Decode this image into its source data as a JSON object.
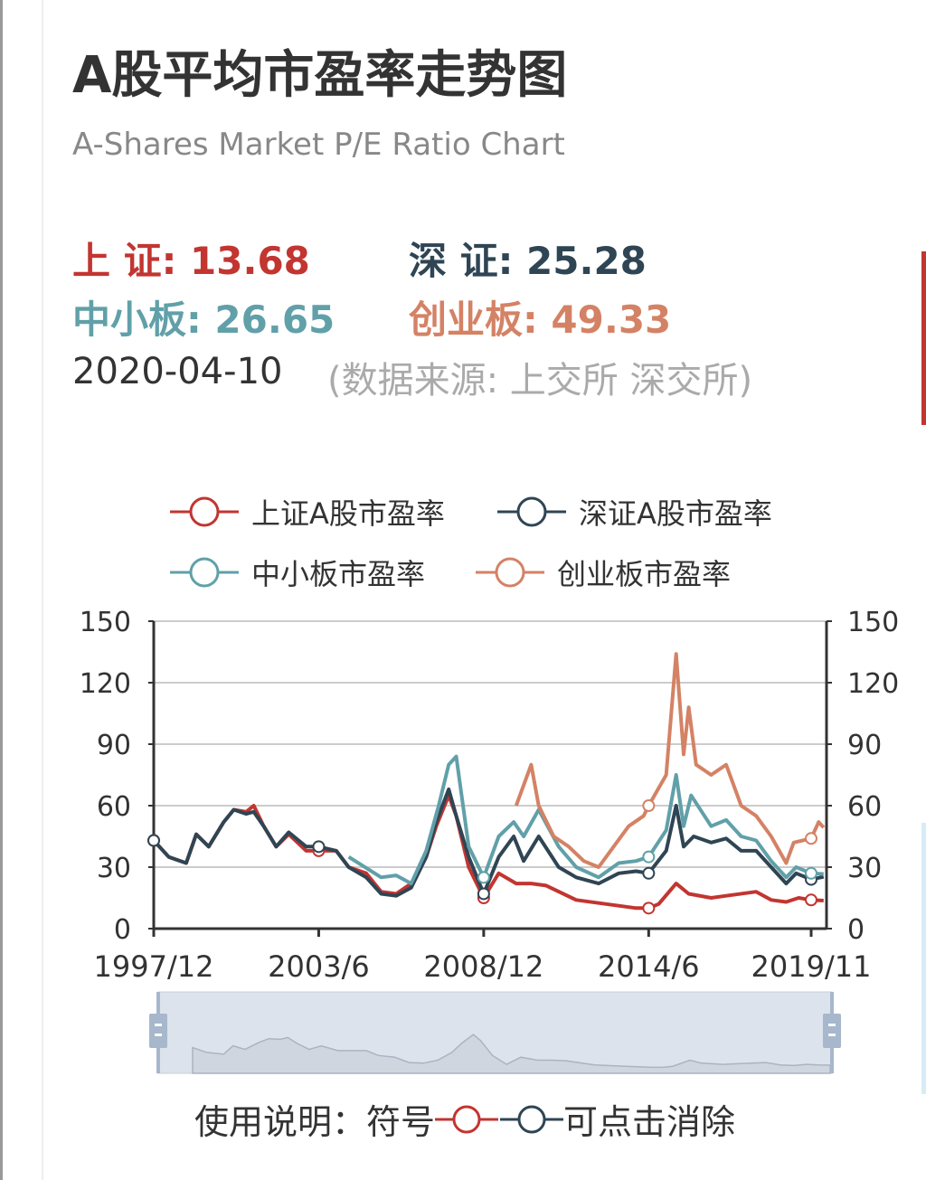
{
  "header": {
    "title": "A股平均市盈率走势图",
    "subtitle": "A-Shares Market P/E Ratio Chart"
  },
  "stats": [
    {
      "label": "上 证: ",
      "value": "13.68",
      "color": "#c23531"
    },
    {
      "label": "深 证: ",
      "value": "25.28",
      "color": "#2f4554"
    },
    {
      "label": "中小板: ",
      "value": "26.65",
      "color": "#61a0a8"
    },
    {
      "label": "创业板: ",
      "value": "49.33",
      "color": "#d48265"
    }
  ],
  "date": "2020-04-10",
  "source": "(数据来源: 上交所 深交所)",
  "note": {
    "prefix": "使用说明：符号",
    "suffix": "可点击消除"
  },
  "chart_data": {
    "type": "line",
    "xlabel": "",
    "ylabel": "",
    "ylim": [
      0,
      150
    ],
    "yticks": [
      0,
      30,
      60,
      90,
      120,
      150
    ],
    "xticks": [
      "1997/12",
      "2003/6",
      "2008/12",
      "2014/6",
      "2019/11"
    ],
    "grid": true,
    "legend_position": "top",
    "data_zoom": true,
    "series": [
      {
        "name": "上证A股市盈率",
        "color": "#c23531",
        "points": [
          [
            "1997/12",
            43
          ],
          [
            "1998/6",
            35
          ],
          [
            "1999/1",
            32
          ],
          [
            "1999/5",
            46
          ],
          [
            "1999/10",
            40
          ],
          [
            "2000/4",
            52
          ],
          [
            "2000/8",
            58
          ],
          [
            "2001/1",
            57
          ],
          [
            "2001/4",
            60
          ],
          [
            "2001/8",
            50
          ],
          [
            "2002/1",
            40
          ],
          [
            "2002/6",
            46
          ],
          [
            "2003/1",
            38
          ],
          [
            "2003/6",
            38
          ],
          [
            "2004/1",
            38
          ],
          [
            "2004/6",
            30
          ],
          [
            "2005/1",
            27
          ],
          [
            "2005/7",
            18
          ],
          [
            "2006/1",
            17
          ],
          [
            "2006/7",
            22
          ],
          [
            "2007/1",
            35
          ],
          [
            "2007/5",
            50
          ],
          [
            "2007/10",
            65
          ],
          [
            "2008/1",
            55
          ],
          [
            "2008/6",
            30
          ],
          [
            "2008/12",
            15
          ],
          [
            "2009/6",
            27
          ],
          [
            "2010/1",
            22
          ],
          [
            "2010/7",
            22
          ],
          [
            "2011/1",
            21
          ],
          [
            "2012/1",
            14
          ],
          [
            "2013/1",
            12
          ],
          [
            "2014/1",
            10
          ],
          [
            "2014/6",
            10
          ],
          [
            "2014/10",
            12
          ],
          [
            "2015/5",
            22
          ],
          [
            "2015/10",
            17
          ],
          [
            "2016/7",
            15
          ],
          [
            "2017/1",
            16
          ],
          [
            "2018/1",
            18
          ],
          [
            "2018/7",
            14
          ],
          [
            "2019/1",
            13
          ],
          [
            "2019/6",
            15
          ],
          [
            "2019/11",
            14
          ],
          [
            "2020/4",
            13.68
          ]
        ]
      },
      {
        "name": "深证A股市盈率",
        "color": "#2f4554",
        "points": [
          [
            "1997/12",
            43
          ],
          [
            "1998/6",
            35
          ],
          [
            "1999/1",
            32
          ],
          [
            "1999/5",
            46
          ],
          [
            "1999/10",
            40
          ],
          [
            "2000/4",
            52
          ],
          [
            "2000/8",
            58
          ],
          [
            "2001/1",
            56
          ],
          [
            "2001/4",
            57
          ],
          [
            "2001/8",
            50
          ],
          [
            "2002/1",
            40
          ],
          [
            "2002/6",
            47
          ],
          [
            "2003/1",
            40
          ],
          [
            "2003/6",
            40
          ],
          [
            "2004/1",
            38
          ],
          [
            "2004/6",
            30
          ],
          [
            "2005/1",
            25
          ],
          [
            "2005/7",
            17
          ],
          [
            "2006/1",
            16
          ],
          [
            "2006/7",
            20
          ],
          [
            "2007/1",
            35
          ],
          [
            "2007/5",
            52
          ],
          [
            "2007/10",
            68
          ],
          [
            "2008/1",
            55
          ],
          [
            "2008/6",
            35
          ],
          [
            "2008/12",
            17
          ],
          [
            "2009/6",
            35
          ],
          [
            "2009/12",
            45
          ],
          [
            "2010/4",
            33
          ],
          [
            "2010/10",
            45
          ],
          [
            "2011/6",
            30
          ],
          [
            "2012/1",
            25
          ],
          [
            "2012/10",
            22
          ],
          [
            "2013/6",
            27
          ],
          [
            "2014/1",
            28
          ],
          [
            "2014/6",
            27
          ],
          [
            "2015/1",
            38
          ],
          [
            "2015/5",
            60
          ],
          [
            "2015/8",
            40
          ],
          [
            "2015/12",
            45
          ],
          [
            "2016/7",
            42
          ],
          [
            "2017/1",
            44
          ],
          [
            "2017/7",
            38
          ],
          [
            "2018/1",
            38
          ],
          [
            "2018/7",
            30
          ],
          [
            "2019/1",
            22
          ],
          [
            "2019/5",
            27
          ],
          [
            "2019/11",
            24
          ],
          [
            "2020/4",
            25.28
          ]
        ]
      },
      {
        "name": "中小板市盈率",
        "color": "#61a0a8",
        "points": [
          [
            "2004/6",
            35
          ],
          [
            "2005/7",
            25
          ],
          [
            "2006/1",
            26
          ],
          [
            "2006/7",
            22
          ],
          [
            "2007/1",
            38
          ],
          [
            "2007/6",
            60
          ],
          [
            "2007/10",
            80
          ],
          [
            "2008/1",
            84
          ],
          [
            "2008/6",
            40
          ],
          [
            "2008/12",
            25
          ],
          [
            "2009/6",
            45
          ],
          [
            "2009/12",
            52
          ],
          [
            "2010/4",
            45
          ],
          [
            "2010/10",
            58
          ],
          [
            "2011/6",
            40
          ],
          [
            "2012/1",
            30
          ],
          [
            "2012/10",
            25
          ],
          [
            "2013/6",
            32
          ],
          [
            "2014/1",
            33
          ],
          [
            "2014/6",
            35
          ],
          [
            "2015/1",
            48
          ],
          [
            "2015/5",
            75
          ],
          [
            "2015/8",
            50
          ],
          [
            "2015/11",
            65
          ],
          [
            "2016/7",
            50
          ],
          [
            "2017/1",
            53
          ],
          [
            "2017/7",
            45
          ],
          [
            "2018/1",
            43
          ],
          [
            "2018/7",
            33
          ],
          [
            "2019/1",
            25
          ],
          [
            "2019/5",
            30
          ],
          [
            "2019/11",
            27
          ],
          [
            "2020/4",
            26.65
          ]
        ]
      },
      {
        "name": "创业板市盈率",
        "color": "#d48265",
        "points": [
          [
            "2010/1",
            60
          ],
          [
            "2010/4",
            70
          ],
          [
            "2010/7",
            80
          ],
          [
            "2010/10",
            60
          ],
          [
            "2011/4",
            45
          ],
          [
            "2011/10",
            40
          ],
          [
            "2012/4",
            33
          ],
          [
            "2012/10",
            30
          ],
          [
            "2013/4",
            40
          ],
          [
            "2013/10",
            50
          ],
          [
            "2014/4",
            55
          ],
          [
            "2014/6",
            60
          ],
          [
            "2015/1",
            75
          ],
          [
            "2015/5",
            134
          ],
          [
            "2015/8",
            85
          ],
          [
            "2015/10",
            108
          ],
          [
            "2016/1",
            80
          ],
          [
            "2016/7",
            75
          ],
          [
            "2017/1",
            80
          ],
          [
            "2017/7",
            60
          ],
          [
            "2018/1",
            55
          ],
          [
            "2018/7",
            45
          ],
          [
            "2019/1",
            32
          ],
          [
            "2019/4",
            42
          ],
          [
            "2019/11",
            44
          ],
          [
            "2020/2",
            52
          ],
          [
            "2020/4",
            49.33
          ]
        ]
      }
    ]
  }
}
